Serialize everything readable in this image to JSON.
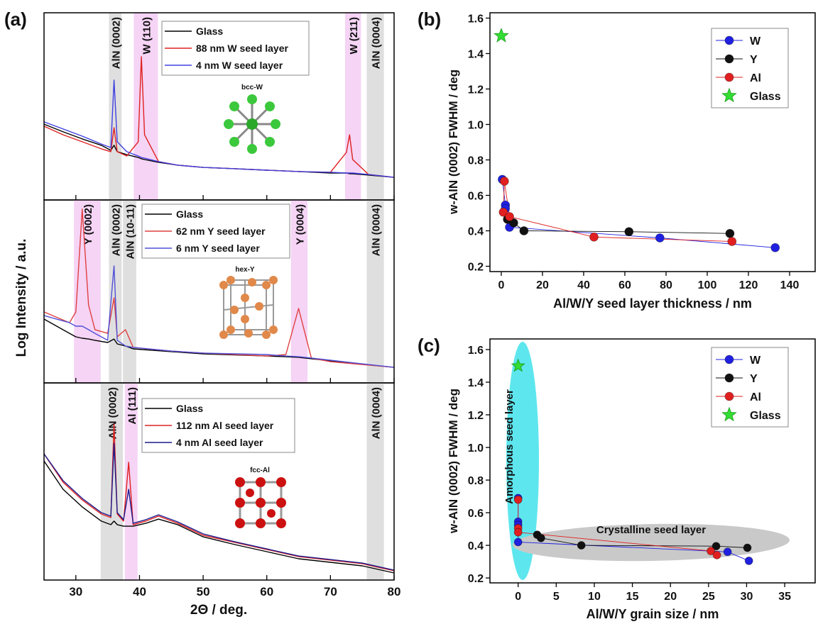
{
  "chart_data": [
    {
      "type": "line",
      "panel_label": "(a)",
      "xlabel": "2Θ / deg.",
      "ylabel": "Log Intensity / a.u.",
      "xlim": [
        25,
        80
      ],
      "xticks": [
        30,
        40,
        50,
        60,
        70,
        80
      ],
      "subplots": [
        {
          "ylim": [
            0,
            10
          ],
          "inset_label": "bcc-W",
          "x": [
            25,
            28,
            31,
            34,
            35.5,
            36,
            36.5,
            38,
            39.8,
            40.3,
            40.8,
            43,
            46,
            50,
            55,
            60,
            65,
            70,
            72.5,
            73,
            73.5,
            76,
            80
          ],
          "series": [
            {
              "name": "Glass",
              "color": "#000000",
              "values": [
                4.05,
                3.64,
                3.26,
                2.92,
                2.65,
                2.92,
                2.58,
                2.42,
                2.27,
                2.2,
                2.16,
                2.01,
                1.86,
                1.74,
                1.67,
                1.59,
                1.52,
                1.44,
                1.44,
                1.4,
                1.4,
                1.33,
                1.21
              ]
            },
            {
              "name": "88 nm W seed layer",
              "color": "#e02020",
              "values": [
                3.94,
                3.48,
                3.11,
                2.73,
                2.58,
                3.86,
                2.58,
                2.35,
                3.11,
                7.65,
                3.48,
                2.05,
                1.86,
                1.74,
                1.67,
                1.59,
                1.52,
                1.48,
                2.54,
                3.48,
                2.16,
                1.36,
                1.21
              ]
            },
            {
              "name": "4 nm W seed layer",
              "color": "#4040e0",
              "values": [
                4.17,
                3.79,
                3.41,
                2.99,
                2.8,
                6.4,
                3.11,
                2.58,
                2.35,
                2.27,
                2.23,
                2.05,
                1.86,
                1.74,
                1.67,
                1.59,
                1.52,
                1.48,
                1.44,
                1.44,
                1.44,
                1.36,
                1.21
              ]
            }
          ],
          "bands": [
            {
              "label": "AlN (0002)",
              "range": [
                35.2,
                37.2
              ],
              "color": "#d9d9d9"
            },
            {
              "label": "W (110)",
              "range": [
                39.1,
                42.9
              ],
              "color": "#f3cdf3"
            },
            {
              "label": "W (211)",
              "range": [
                72.3,
                74.8
              ],
              "color": "#f3cdf3"
            },
            {
              "label": "AlN (0004)",
              "range": [
                75.7,
                78.4
              ],
              "color": "#d9d9d9"
            }
          ]
        },
        {
          "ylim": [
            0,
            10
          ],
          "inset_label": "hex-Y",
          "x": [
            25,
            29,
            30,
            31,
            32,
            33,
            35,
            36,
            36.5,
            37.8,
            39,
            45,
            50,
            60,
            63,
            65,
            67,
            70,
            80
          ],
          "series": [
            {
              "name": "Glass",
              "color": "#000000",
              "values": [
                3.49,
                2.71,
                2.52,
                2.44,
                2.4,
                2.33,
                2.21,
                2.4,
                2.13,
                2.02,
                1.86,
                1.71,
                1.59,
                1.47,
                1.43,
                1.4,
                1.32,
                1.2,
                0.85
              ]
            },
            {
              "name": "62 nm Y seed layer",
              "color": "#e04040",
              "values": [
                3.88,
                3.29,
                3.88,
                9.5,
                4.26,
                2.91,
                2.71,
                4.65,
                2.52,
                2.91,
                1.94,
                1.74,
                1.63,
                1.47,
                1.55,
                4.07,
                1.36,
                1.16,
                0.85
              ]
            },
            {
              "name": "6 nm Y seed layer",
              "color": "#5050d8",
              "values": [
                3.68,
                3.29,
                3.1,
                3.1,
                2.91,
                2.71,
                2.33,
                6.4,
                2.33,
                2.02,
                1.94,
                1.74,
                1.63,
                1.55,
                1.47,
                1.43,
                1.36,
                1.24,
                0.85
              ]
            }
          ],
          "bands": [
            {
              "label": "Y (0002)",
              "range": [
                29.7,
                33.9
              ],
              "color": "#f3cdf3"
            },
            {
              "label": "AlN (0002)",
              "range": [
                35.2,
                37.2
              ],
              "color": "#d9d9d9"
            },
            {
              "label": "AlN (10-11)",
              "range": [
                37.4,
                39.5
              ],
              "color": "#d9d9d9"
            },
            {
              "label": "Y (0004)",
              "range": [
                63.8,
                66.4
              ],
              "color": "#f3cdf3"
            },
            {
              "label": "AlN (0004)",
              "range": [
                75.7,
                78.4
              ],
              "color": "#d9d9d9"
            }
          ]
        },
        {
          "ylim": [
            0,
            10
          ],
          "inset_label": "fcc-Al",
          "x": [
            25,
            28,
            31,
            34,
            35.5,
            36,
            36.5,
            37.5,
            38.3,
            39,
            41,
            43,
            46,
            50,
            55,
            60,
            65,
            70,
            75,
            80
          ],
          "series": [
            {
              "name": "Glass",
              "color": "#000000",
              "values": [
                6.04,
                4.6,
                3.71,
                2.99,
                2.81,
                2.99,
                2.81,
                2.73,
                2.73,
                2.73,
                2.88,
                3.09,
                2.81,
                2.19,
                1.8,
                1.44,
                1.08,
                0.9,
                0.72,
                0.36
              ]
            },
            {
              "name": "112 nm Al seed layer",
              "color": "#e02020",
              "values": [
                6.4,
                4.96,
                4.06,
                3.35,
                3.17,
                7.91,
                3.35,
                2.99,
                5.97,
                2.81,
                2.99,
                3.24,
                2.88,
                2.27,
                1.91,
                1.55,
                1.19,
                1.01,
                0.83,
                0.47
              ]
            },
            {
              "name": "4 nm Al seed layer",
              "color": "#1c1c8c",
              "values": [
                6.4,
                5.04,
                4.14,
                3.42,
                3.24,
                6.94,
                3.42,
                3.06,
                4.6,
                2.88,
                3.06,
                3.31,
                2.95,
                2.34,
                1.94,
                1.58,
                1.22,
                1.04,
                0.86,
                0.5
              ]
            }
          ],
          "bands": [
            {
              "label": "AlN (0002)",
              "range": [
                33.9,
                37.4
              ],
              "color": "#d9d9d9"
            },
            {
              "label": "Al (111)",
              "range": [
                37.7,
                39.7
              ],
              "color": "#f3cdf3"
            },
            {
              "label": "AlN (0004)",
              "range": [
                75.7,
                78.4
              ],
              "color": "#d9d9d9"
            }
          ]
        }
      ]
    },
    {
      "type": "scatter",
      "panel_label": "(b)",
      "xlabel": "Al/W/Y seed layer thickness / nm",
      "ylabel": "w-AlN (0002) FWHM / deg",
      "xlim": [
        -5.5,
        152.4
      ],
      "xticks": [
        0,
        20,
        40,
        60,
        80,
        100,
        120,
        140
      ],
      "ylim": [
        0.17,
        1.63
      ],
      "yticks": [
        0.2,
        0.4,
        0.6,
        0.8,
        {
          "value": 1.0,
          "label": "1.0"
        },
        1.2,
        1.4,
        1.6
      ],
      "legend": "upper right",
      "series": [
        {
          "name": "W",
          "color": "#2020e0",
          "marker": "circle",
          "x": [
            0.5,
            2,
            2,
            4,
            77,
            133
          ],
          "values": [
            0.69,
            0.545,
            0.525,
            0.42,
            0.36,
            0.305
          ]
        },
        {
          "name": "Y",
          "color": "#111111",
          "marker": "circle",
          "x": [
            3,
            6,
            11,
            62,
            111
          ],
          "values": [
            0.465,
            0.445,
            0.4,
            0.395,
            0.385
          ]
        },
        {
          "name": "Al",
          "color": "#e02020",
          "marker": "circle",
          "x": [
            1,
            1.5,
            4,
            45,
            112
          ],
          "values": [
            0.505,
            0.68,
            0.48,
            0.365,
            0.34
          ]
        },
        {
          "name": "Glass",
          "color": "#33dd33",
          "marker": "star",
          "x": [
            0
          ],
          "values": [
            1.5
          ]
        }
      ]
    },
    {
      "type": "scatter",
      "panel_label": "(c)",
      "xlabel": "Al/W/Y grain size / nm",
      "ylabel": "w-AlN (0002) FWHM / deg",
      "xlim": [
        -3.7,
        39
      ],
      "xticks": [
        0,
        5,
        10,
        15,
        20,
        25,
        30,
        35
      ],
      "ylim": [
        0.17,
        1.665
      ],
      "yticks": [
        0.2,
        0.4,
        0.6,
        0.8,
        {
          "value": 1.0,
          "label": "1.0"
        },
        1.2,
        1.4,
        1.6
      ],
      "legend": "upper right",
      "annotations": [
        "Amorphous seed layer",
        "Crystalline seed layer"
      ],
      "series": [
        {
          "name": "W",
          "color": "#2020e0",
          "marker": "circle",
          "x": [
            0,
            0,
            0,
            0,
            27.5,
            30.3
          ],
          "values": [
            0.69,
            0.545,
            0.525,
            0.42,
            0.36,
            0.305
          ]
        },
        {
          "name": "Y",
          "color": "#111111",
          "marker": "circle",
          "x": [
            2.5,
            3,
            8.3,
            26,
            30.1
          ],
          "values": [
            0.465,
            0.445,
            0.4,
            0.395,
            0.385
          ]
        },
        {
          "name": "Al",
          "color": "#e02020",
          "marker": "circle",
          "x": [
            0,
            0,
            0,
            25.3,
            26.1
          ],
          "values": [
            0.68,
            0.505,
            0.48,
            0.365,
            0.34
          ]
        },
        {
          "name": "Glass",
          "color": "#33dd33",
          "marker": "star",
          "x": [
            0
          ],
          "values": [
            1.5
          ]
        }
      ]
    }
  ]
}
